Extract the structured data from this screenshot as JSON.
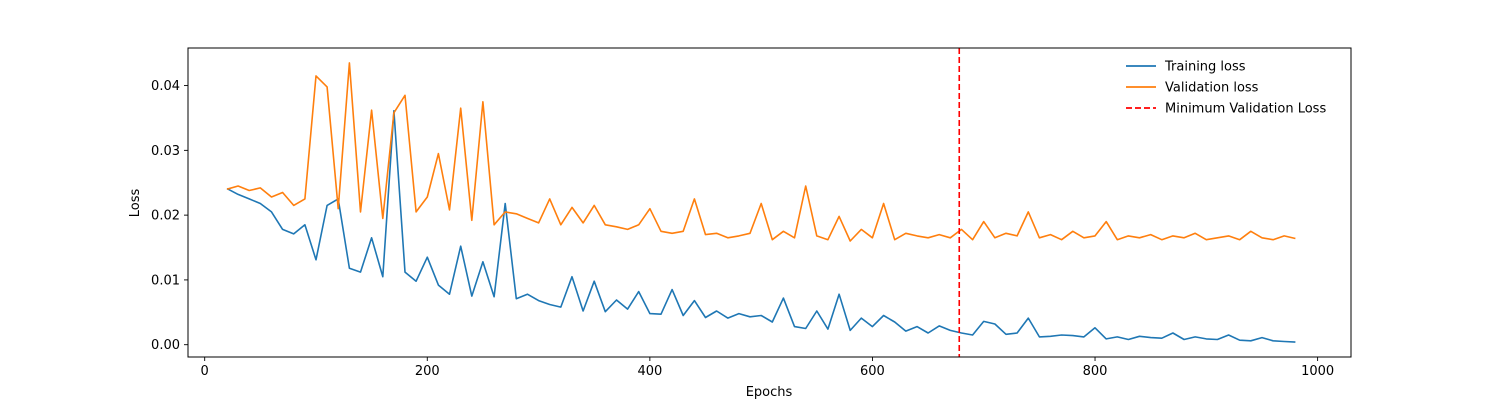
{
  "chart_data": {
    "type": "line",
    "title": "",
    "xlabel": "Epochs",
    "ylabel": "Loss",
    "xlim": [
      -15,
      1030
    ],
    "ylim": [
      -0.0019,
      0.0458
    ],
    "xticks": [
      0,
      200,
      400,
      600,
      800,
      1000
    ],
    "xtick_labels": [
      "0",
      "200",
      "400",
      "600",
      "800",
      "1000"
    ],
    "yticks": [
      0.0,
      0.01,
      0.02,
      0.03,
      0.04
    ],
    "ytick_labels": [
      "0.00",
      "0.01",
      "0.02",
      "0.03",
      "0.04"
    ],
    "grid": false,
    "legend_position": "top-right",
    "series": [
      {
        "name": "Training loss",
        "color": "#1f77b4",
        "x_start": 20,
        "x_end": 980,
        "x_step": 10,
        "values": [
          0.0241,
          0.0232,
          0.0225,
          0.0218,
          0.0205,
          0.0178,
          0.0171,
          0.0185,
          0.0131,
          0.0215,
          0.0225,
          0.0118,
          0.0112,
          0.0165,
          0.0105,
          0.0361,
          0.0112,
          0.0098,
          0.0135,
          0.0092,
          0.0078,
          0.0152,
          0.0075,
          0.0128,
          0.0074,
          0.0218,
          0.0071,
          0.0078,
          0.0068,
          0.0062,
          0.0058,
          0.0105,
          0.0052,
          0.0098,
          0.0051,
          0.0069,
          0.0055,
          0.0082,
          0.0048,
          0.0047,
          0.0085,
          0.0045,
          0.0068,
          0.0042,
          0.0052,
          0.0041,
          0.0048,
          0.0043,
          0.0045,
          0.0035,
          0.0072,
          0.0028,
          0.0025,
          0.0052,
          0.0024,
          0.0078,
          0.0022,
          0.0041,
          0.0028,
          0.0045,
          0.0035,
          0.0021,
          0.0028,
          0.0018,
          0.0029,
          0.0022,
          0.0018,
          0.0015,
          0.0036,
          0.0032,
          0.0016,
          0.0018,
          0.0041,
          0.0012,
          0.0013,
          0.0015,
          0.0014,
          0.0012,
          0.0026,
          0.0009,
          0.0012,
          0.0008,
          0.0013,
          0.0011,
          0.001,
          0.0018,
          0.0008,
          0.0012,
          0.0009,
          0.0008,
          0.0015,
          0.0007,
          0.0006,
          0.0011,
          0.0006,
          0.0005,
          0.0004
        ]
      },
      {
        "name": "Validation loss",
        "color": "#ff7f0e",
        "x_start": 20,
        "x_end": 980,
        "x_step": 10,
        "values": [
          0.024,
          0.0245,
          0.0238,
          0.0242,
          0.0228,
          0.0235,
          0.0215,
          0.0225,
          0.0415,
          0.0398,
          0.021,
          0.0435,
          0.0205,
          0.0362,
          0.0195,
          0.0358,
          0.0385,
          0.0205,
          0.0228,
          0.0295,
          0.0208,
          0.0365,
          0.0192,
          0.0375,
          0.0185,
          0.0205,
          0.0202,
          0.0195,
          0.0188,
          0.0225,
          0.0185,
          0.0212,
          0.0188,
          0.0215,
          0.0185,
          0.0182,
          0.0178,
          0.0185,
          0.021,
          0.0175,
          0.0172,
          0.0175,
          0.0225,
          0.017,
          0.0172,
          0.0165,
          0.0168,
          0.0172,
          0.0218,
          0.0162,
          0.0175,
          0.0165,
          0.0245,
          0.0168,
          0.0162,
          0.0198,
          0.016,
          0.0178,
          0.0165,
          0.0218,
          0.0162,
          0.0172,
          0.0168,
          0.0165,
          0.017,
          0.0165,
          0.0178,
          0.0162,
          0.019,
          0.0165,
          0.0172,
          0.0168,
          0.0205,
          0.0165,
          0.017,
          0.0162,
          0.0175,
          0.0165,
          0.0168,
          0.019,
          0.0162,
          0.0168,
          0.0165,
          0.017,
          0.0162,
          0.0168,
          0.0165,
          0.0172,
          0.0162,
          0.0165,
          0.0168,
          0.0162,
          0.0175,
          0.0165,
          0.0162,
          0.0168,
          0.0164
        ]
      }
    ],
    "vlines": [
      {
        "name": "Minimum Validation Loss",
        "x": 678,
        "color": "#ff0000",
        "style": "dashed"
      }
    ]
  }
}
